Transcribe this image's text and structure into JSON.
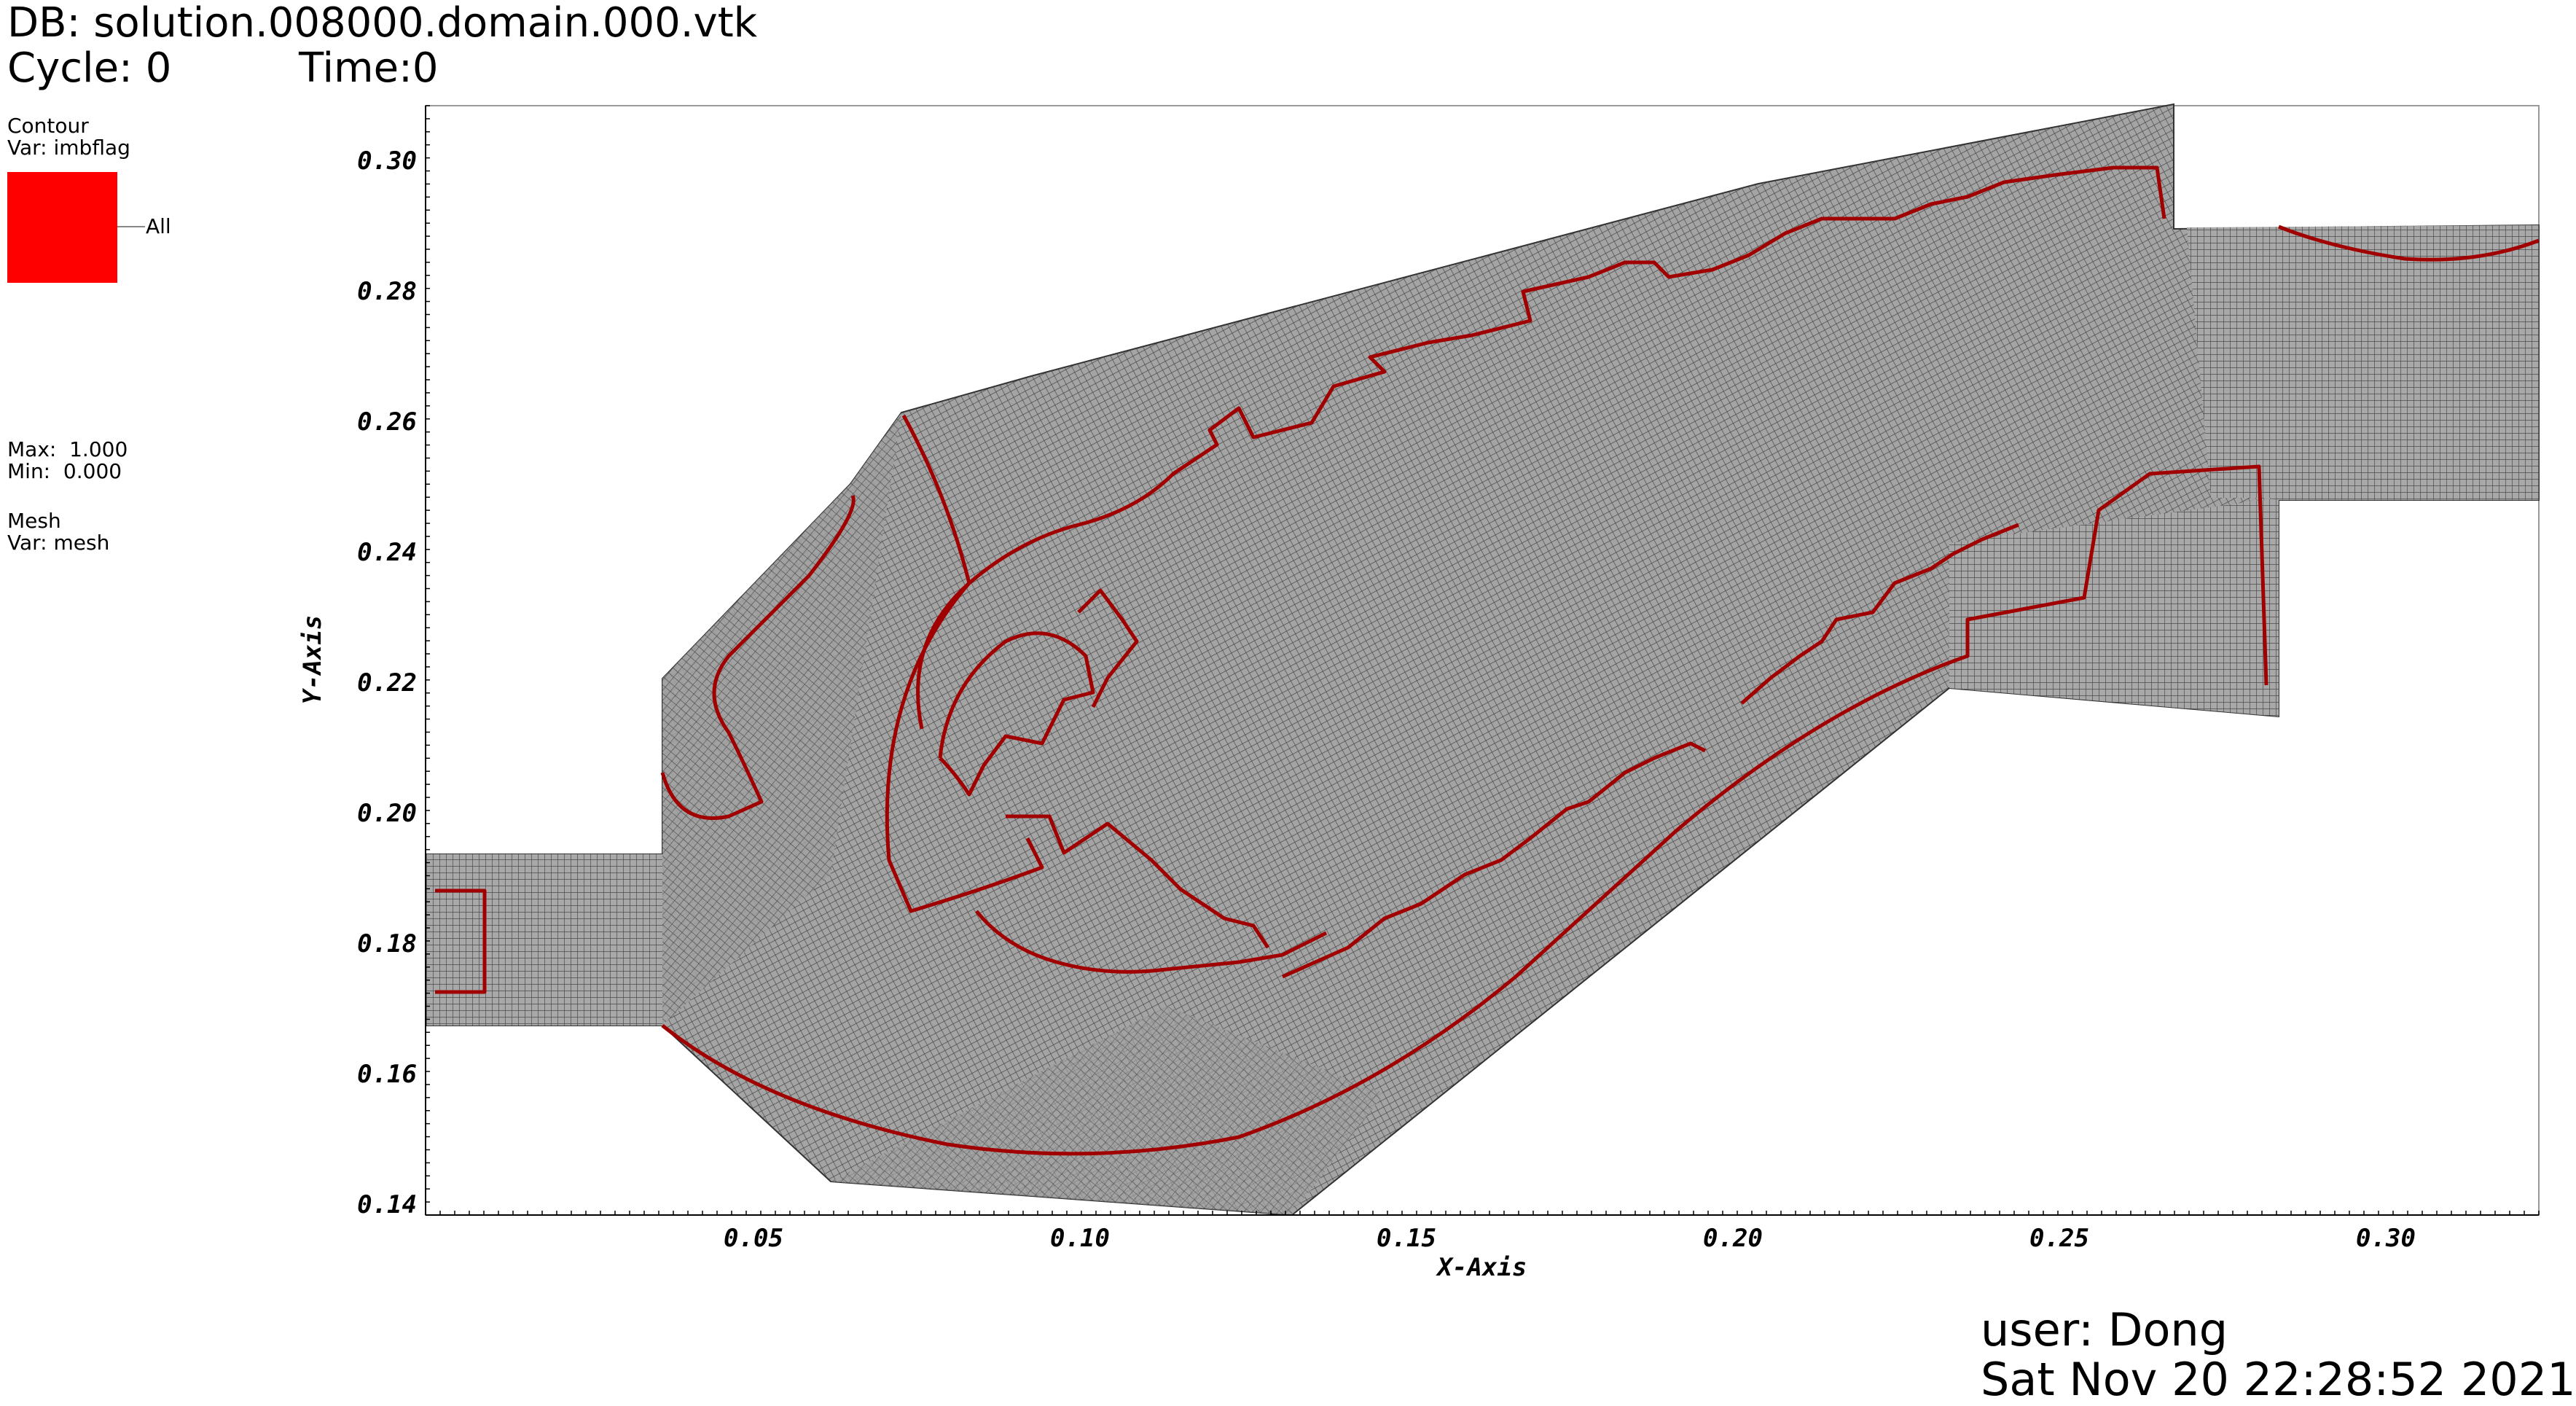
{
  "header": {
    "db_line": "DB: solution.008000.domain.000.vtk",
    "cycle": "Cycle: 0",
    "time": "Time:0"
  },
  "legend": {
    "contour_title": "Contour",
    "contour_var": "Var: imbflag",
    "swatch_color": "#ff0000",
    "swatch_label": "All",
    "max_label": "Max:  1.000",
    "min_label": "Min:  0.000",
    "mesh_title": "Mesh",
    "mesh_var": "Var: mesh"
  },
  "plot": {
    "x_axis_title": "X-Axis",
    "y_axis_title": "Y-Axis",
    "x_ticks": [
      "0.05",
      "0.10",
      "0.15",
      "0.20",
      "0.25",
      "0.30"
    ],
    "y_ticks": [
      "0.30",
      "0.28",
      "0.26",
      "0.24",
      "0.22",
      "0.20",
      "0.18",
      "0.16",
      "0.14"
    ],
    "mesh_color": "#4a4a4a",
    "contour_color": "#a00000"
  },
  "footer": {
    "user": "user: Dong",
    "date": "Sat Nov 20 22:28:52 2021"
  }
}
